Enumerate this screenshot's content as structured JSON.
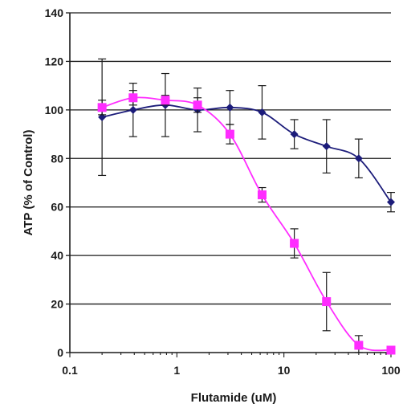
{
  "chart_data": {
    "type": "line",
    "xscale": "log",
    "xlim": [
      0.1,
      100
    ],
    "ylim": [
      0,
      140
    ],
    "xlabel": "Flutamide (uM)",
    "ylabel": "ATP (% of Control)",
    "grid": "horizontal",
    "x_ticks": [
      0.1,
      1,
      10,
      100
    ],
    "x_tick_labels": [
      "0.1",
      "1",
      "10",
      "100"
    ],
    "y_ticks": [
      0,
      20,
      40,
      60,
      80,
      100,
      120,
      140
    ],
    "y_tick_labels": [
      "0",
      "20",
      "40",
      "60",
      "80",
      "100",
      "120",
      "140"
    ],
    "series": [
      {
        "color": "#1c1c7a",
        "marker": "diamond",
        "x": [
          0.2,
          0.39,
          0.78,
          1.56,
          3.13,
          6.25,
          12.5,
          25,
          50,
          100
        ],
        "y": [
          97,
          100,
          102,
          100,
          101,
          99,
          90,
          85,
          80,
          62
        ],
        "err": [
          24,
          11,
          13,
          9,
          7,
          11,
          6,
          11,
          8,
          4
        ]
      },
      {
        "color": "#ff2cff",
        "marker": "square",
        "x": [
          0.2,
          0.39,
          0.78,
          1.56,
          3.13,
          6.25,
          12.5,
          25,
          50,
          100
        ],
        "y": [
          101,
          105,
          104,
          102,
          90,
          65,
          45,
          21,
          3,
          1
        ],
        "err": [
          3,
          3,
          2,
          3,
          4,
          3,
          6,
          12,
          4,
          1
        ]
      }
    ]
  }
}
